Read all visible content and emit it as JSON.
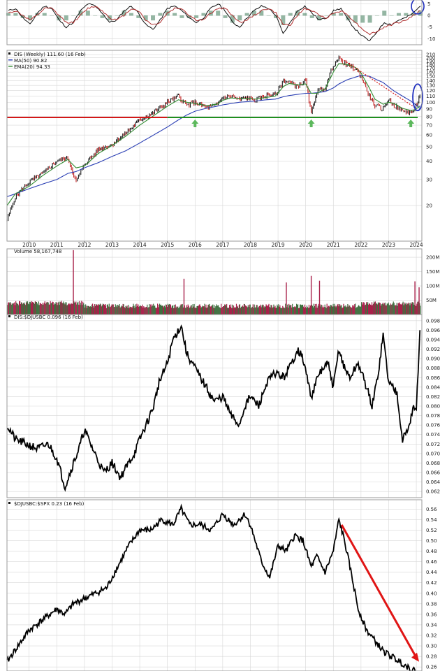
{
  "chart_data": [
    {
      "type": "line",
      "panel": "oscillator",
      "y_ticks": [
        "5",
        "0",
        "-5",
        "-10"
      ],
      "ylim": [
        -12,
        6
      ],
      "series": [
        {
          "values": [
            2,
            3,
            -1,
            -4,
            1,
            4,
            3,
            -2,
            -5,
            -3,
            2,
            5,
            4,
            1,
            -3,
            -2,
            2,
            4,
            1,
            -4,
            -6,
            -2,
            3,
            4,
            2,
            -1,
            -3,
            -1,
            3,
            5,
            2,
            -3,
            -5,
            -1,
            2,
            4,
            3,
            0,
            -8,
            -3,
            2,
            4,
            1,
            -2,
            -1,
            2,
            3,
            -2,
            -6,
            -9,
            -11,
            -7,
            -3,
            -4,
            -2,
            -1,
            1,
            4
          ]
        },
        {
          "values": [
            1,
            2,
            0,
            -2,
            0,
            3,
            3,
            0,
            -3,
            -3,
            0,
            3,
            4,
            2,
            -1,
            -2,
            0,
            3,
            2,
            -2,
            -4,
            -3,
            1,
            3,
            3,
            0,
            -2,
            -2,
            1,
            3,
            3,
            0,
            -3,
            -2,
            0,
            2,
            3,
            1,
            -4,
            -4,
            0,
            3,
            2,
            0,
            -1,
            1,
            2,
            0,
            -3,
            -6,
            -8,
            -7,
            -5,
            -4,
            -3,
            -2,
            0,
            2
          ]
        }
      ],
      "annotation": "blue ellipse at latest bar"
    },
    {
      "type": "line",
      "panel": "price",
      "legend": [
        "DIS (Weekly) 111.60 (16 Feb)",
        "MA(50) 90.82",
        "EMA(20) 94.33"
      ],
      "scale": "log",
      "y_ticks": [
        "210",
        "200",
        "190",
        "180",
        "170",
        "160",
        "150",
        "140",
        "130",
        "120",
        "110",
        "100",
        "90",
        "80",
        "70",
        "60",
        "50",
        "40",
        "30",
        "20"
      ],
      "x_ticks": [
        "2010",
        "2011",
        "2012",
        "2013",
        "2014",
        "2015",
        "2016",
        "2017",
        "2018",
        "2019",
        "2020",
        "2021",
        "2022",
        "2023",
        "2024"
      ],
      "x": [
        2009.2,
        2009.5,
        2010.0,
        2010.5,
        2011.0,
        2011.4,
        2011.7,
        2012.0,
        2012.5,
        2013.0,
        2013.5,
        2014.0,
        2014.5,
        2015.0,
        2015.4,
        2015.7,
        2016.0,
        2016.4,
        2016.8,
        2017.0,
        2017.3,
        2017.6,
        2017.9,
        2018.2,
        2018.6,
        2018.9,
        2019.2,
        2019.4,
        2019.7,
        2020.0,
        2020.2,
        2020.4,
        2020.7,
        2021.0,
        2021.2,
        2021.5,
        2021.8,
        2022.0,
        2022.3,
        2022.5,
        2022.8,
        2023.0,
        2023.2,
        2023.5,
        2023.8,
        2023.95,
        2024.13
      ],
      "close": [
        16,
        23,
        29,
        33,
        40,
        42,
        29,
        38,
        48,
        52,
        62,
        76,
        85,
        100,
        110,
        95,
        100,
        92,
        96,
        108,
        110,
        104,
        108,
        103,
        112,
        112,
        140,
        137,
        128,
        140,
        83,
        118,
        125,
        180,
        197,
        177,
        168,
        150,
        110,
        95,
        90,
        105,
        95,
        87,
        85,
        90,
        111.6
      ],
      "ma50": [
        23,
        24,
        26,
        28,
        30,
        33,
        34,
        36,
        39,
        43,
        47,
        53,
        60,
        68,
        76,
        82,
        87,
        91,
        94,
        96,
        98,
        100,
        101,
        102,
        104,
        105,
        109,
        111,
        113,
        115,
        115,
        116,
        118,
        125,
        133,
        142,
        148,
        152,
        150,
        144,
        136,
        127,
        119,
        110,
        102,
        97,
        90.82
      ],
      "ema20": [
        20,
        24,
        27,
        32,
        37,
        41,
        36,
        37,
        45,
        51,
        59,
        70,
        81,
        94,
        104,
        100,
        98,
        95,
        97,
        103,
        107,
        106,
        106,
        105,
        108,
        110,
        128,
        134,
        131,
        133,
        115,
        115,
        123,
        160,
        183,
        180,
        172,
        158,
        125,
        105,
        97,
        100,
        98,
        91,
        88,
        89,
        94.33
      ],
      "support_level": 79,
      "support_arrows_at": [
        2016.0,
        2020.2,
        2023.8
      ],
      "annotation": "blue ellipse around latest breakout"
    },
    {
      "type": "bar",
      "panel": "volume",
      "legend": "Volume 58,167,748",
      "y_ticks": [
        "200M",
        "150M",
        "100M",
        "50M"
      ],
      "ylim": [
        0,
        210
      ],
      "spikes": [
        {
          "x": 2011.6,
          "value": 225
        },
        {
          "x": 2015.6,
          "value": 125
        },
        {
          "x": 2020.2,
          "value": 135
        },
        {
          "x": 2020.5,
          "value": 118
        },
        {
          "x": 2019.3,
          "value": 112
        },
        {
          "x": 2023.95,
          "value": 116
        },
        {
          "x": 2024.1,
          "value": 95
        }
      ]
    },
    {
      "type": "line",
      "panel": "ratio1",
      "legend": "DIS:$DJUSBC 0.096 (16 Feb)",
      "y_ticks": [
        "0.098",
        "0.096",
        "0.094",
        "0.092",
        "0.090",
        "0.088",
        "0.086",
        "0.084",
        "0.082",
        "0.080",
        "0.078",
        "0.076",
        "0.074",
        "0.072",
        "0.070",
        "0.068",
        "0.066",
        "0.064",
        "0.062"
      ],
      "ylim": [
        0.061,
        0.099
      ],
      "x": [
        2009.2,
        2009.5,
        2009.9,
        2010.3,
        2010.7,
        2011.0,
        2011.3,
        2011.6,
        2011.8,
        2012.0,
        2012.3,
        2012.7,
        2013.0,
        2013.3,
        2013.6,
        2013.8,
        2014.0,
        2014.3,
        2014.5,
        2014.7,
        2015.0,
        2015.2,
        2015.5,
        2015.7,
        2015.9,
        2016.3,
        2016.7,
        2017.0,
        2017.3,
        2017.6,
        2017.8,
        2018.0,
        2018.3,
        2018.6,
        2018.9,
        2019.2,
        2019.5,
        2019.7,
        2019.9,
        2020.2,
        2020.5,
        2020.8,
        2021.0,
        2021.2,
        2021.4,
        2021.6,
        2021.9,
        2022.2,
        2022.4,
        2022.6,
        2022.8,
        2023.0,
        2023.3,
        2023.5,
        2023.7,
        2023.9,
        2024.0,
        2024.13
      ],
      "values": [
        0.076,
        0.073,
        0.072,
        0.071,
        0.072,
        0.069,
        0.063,
        0.068,
        0.071,
        0.075,
        0.071,
        0.066,
        0.068,
        0.065,
        0.068,
        0.07,
        0.073,
        0.077,
        0.08,
        0.085,
        0.089,
        0.094,
        0.097,
        0.091,
        0.089,
        0.085,
        0.081,
        0.082,
        0.078,
        0.076,
        0.08,
        0.082,
        0.08,
        0.085,
        0.087,
        0.086,
        0.089,
        0.092,
        0.09,
        0.082,
        0.087,
        0.089,
        0.084,
        0.092,
        0.088,
        0.086,
        0.089,
        0.084,
        0.08,
        0.086,
        0.095,
        0.085,
        0.083,
        0.073,
        0.075,
        0.08,
        0.079,
        0.096
      ]
    },
    {
      "type": "line",
      "panel": "ratio2",
      "legend": "$DJUSBC:$SPX 0.23 (16 Feb)",
      "y_ticks": [
        "0.56",
        "0.54",
        "0.52",
        "0.50",
        "0.48",
        "0.46",
        "0.44",
        "0.42",
        "0.40",
        "0.38",
        "0.36",
        "0.34",
        "0.32",
        "0.30",
        "0.28",
        "0.26"
      ],
      "ylim": [
        0.255,
        0.575
      ],
      "x": [
        2009.2,
        2009.6,
        2010.0,
        2010.5,
        2011.0,
        2011.3,
        2011.6,
        2012.0,
        2012.4,
        2012.8,
        2013.2,
        2013.6,
        2014.0,
        2014.4,
        2014.8,
        2015.2,
        2015.5,
        2015.8,
        2016.2,
        2016.6,
        2017.0,
        2017.4,
        2017.8,
        2018.0,
        2018.4,
        2018.7,
        2019.0,
        2019.3,
        2019.6,
        2019.9,
        2020.2,
        2020.4,
        2020.7,
        2021.0,
        2021.2,
        2021.4,
        2021.6,
        2021.9,
        2022.2,
        2022.5,
        2022.8,
        2023.1,
        2023.4,
        2023.7,
        2024.0,
        2024.13
      ],
      "values": [
        0.27,
        0.3,
        0.33,
        0.35,
        0.37,
        0.36,
        0.38,
        0.39,
        0.4,
        0.41,
        0.45,
        0.49,
        0.52,
        0.52,
        0.54,
        0.53,
        0.56,
        0.53,
        0.53,
        0.52,
        0.55,
        0.53,
        0.55,
        0.53,
        0.46,
        0.43,
        0.49,
        0.48,
        0.51,
        0.5,
        0.45,
        0.47,
        0.44,
        0.48,
        0.54,
        0.5,
        0.45,
        0.37,
        0.33,
        0.31,
        0.29,
        0.28,
        0.27,
        0.26,
        0.25,
        0.23
      ],
      "trend_arrow": {
        "from_x": 2021.3,
        "from_y": 0.53,
        "to_x": 2024.1,
        "to_y": 0.27
      }
    }
  ]
}
